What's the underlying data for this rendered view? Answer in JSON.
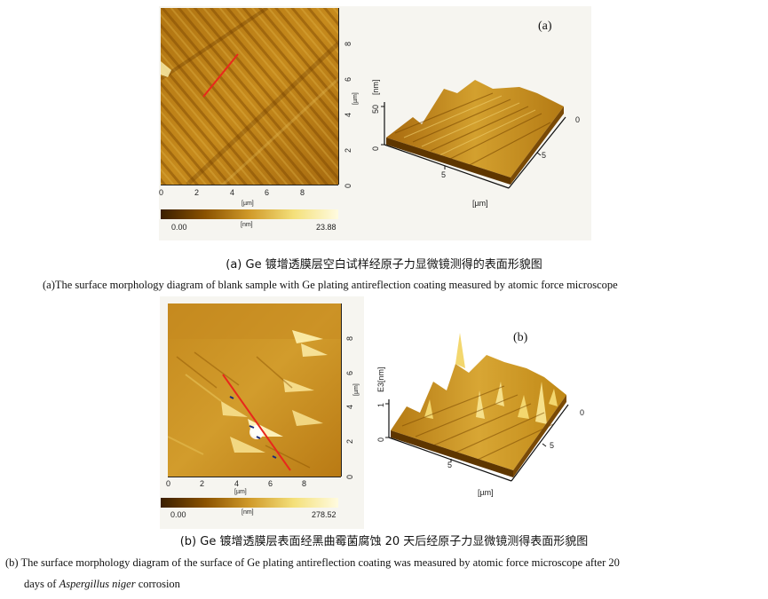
{
  "panel_a": {
    "label": "(a)",
    "scale_min": "0.00",
    "scale_unit": "[nm]",
    "scale_max": "23.88",
    "x_ticks": [
      "0",
      "2",
      "4",
      "6",
      "8"
    ],
    "y_ticks": [
      "0",
      "2",
      "4",
      "6",
      "8"
    ],
    "x_unit": "[µm]",
    "y_unit": "[µm]",
    "z_unit": "[nm]",
    "z_ticks": [
      "0",
      "50"
    ],
    "surface_ticks_front": [
      "5"
    ],
    "surface_ticks_right": [
      "0",
      "5"
    ],
    "surface_unit": "[µm]",
    "caption_zh": "(a) Ge 镀增透膜层空白试样经原子力显微镜测得的表面形貌图",
    "caption_en": "(a)The surface morphology diagram of blank sample with Ge plating antireflection coating measured by atomic force microscope",
    "colors": {
      "dark": "#6b3d00",
      "mid": "#c98f1a",
      "light": "#f3dd74"
    }
  },
  "panel_b": {
    "label": "(b)",
    "scale_min": "0.00",
    "scale_unit": "[nm]",
    "scale_max": "278.52",
    "x_ticks": [
      "0",
      "2",
      "4",
      "6",
      "8"
    ],
    "y_ticks": [
      "0",
      "2",
      "4",
      "6",
      "8"
    ],
    "x_unit": "[µm]",
    "y_unit": "[µm]",
    "z_unit": "E3[nm]",
    "z_ticks": [
      "0",
      "1"
    ],
    "surface_ticks_front": [
      "5"
    ],
    "surface_ticks_right": [
      "0",
      "5"
    ],
    "surface_unit": "[µm]",
    "caption_zh": "(b) Ge 镀增透膜层表面经黑曲霉菌腐蚀 20 天后经原子力显微镜测得表面形貌图",
    "caption_en_line1": "(b) The surface morphology diagram of the surface of Ge plating antireflection coating was measured by atomic force microscope after 20",
    "caption_en_line2_prefix": "days of ",
    "caption_en_line2_species": "Aspergillus niger",
    "caption_en_line2_suffix": " corrosion",
    "colors": {
      "dark": "#6b3d00",
      "mid": "#cf9420",
      "light": "#f6e38a"
    }
  }
}
